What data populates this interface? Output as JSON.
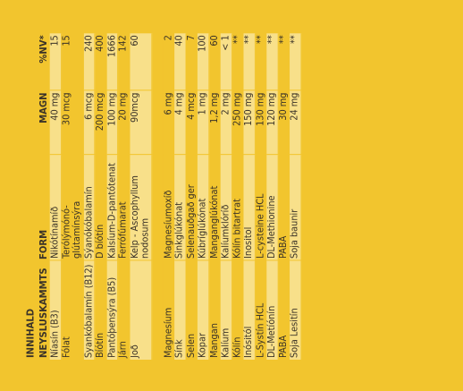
{
  "header": {
    "title_line1": "INNIHALD",
    "col1": "NEYSLUSKAMMTS",
    "col2": "FORM",
    "col3": "MAGN",
    "col4": "%NV*"
  },
  "rows": [
    {
      "name": "Níasín (B3)",
      "form": "Nikótínamíð",
      "amount": "40 mg",
      "nv": "15",
      "hl": true
    },
    {
      "name": "Fólat",
      "form": "Terólýmónó-glútamínsýra",
      "amount": "30 mcg",
      "nv": "15",
      "hl": false
    },
    {
      "name": "Syankóbalamín (B12)",
      "form": "Sýanókóbalamín",
      "amount": "6 mcg",
      "nv": "240",
      "hl": true
    },
    {
      "name": "Bíótín",
      "form": "D bíótín",
      "amount": "200 mcg",
      "nv": "400",
      "hl": false
    },
    {
      "name": "Pantóþensýra (B5)",
      "form": "Kalsíum-D-pantótenat",
      "amount": "100 mg",
      "nv": "1666",
      "hl": true
    },
    {
      "name": "Járn",
      "form": "Ferrófúmarat",
      "amount": "20 mg",
      "nv": "142",
      "hl": false
    },
    {
      "name": "Joð",
      "form": "Kelp - Ascophyllum nodosum",
      "amount": "90mcg",
      "nv": "60",
      "hl": true
    },
    {
      "name": "Magnesíum",
      "form": "Magnesíumoxíð",
      "amount": "6 mg",
      "nv": "2",
      "hl": false
    },
    {
      "name": "Sínk",
      "form": "Sinkglúkónat",
      "amount": "4 mg",
      "nv": "40",
      "hl": true
    },
    {
      "name": "Selen",
      "form": "Selenauðgað ger",
      "amount": "4 mcg",
      "nv": "7",
      "hl": false
    },
    {
      "name": "Kopar",
      "form": "Kúbríglúkónat",
      "amount": "1 mg",
      "nv": "100",
      "hl": true
    },
    {
      "name": "Mangan",
      "form": "Manganglúkónat",
      "amount": "1,2 mg",
      "nv": "60",
      "hl": false
    },
    {
      "name": "Kalíum",
      "form": "Kalíumklóríð",
      "amount": "2 mg",
      "nv": "< 1",
      "hl": true
    },
    {
      "name": "Kólín",
      "form": "Kólín bitartrat",
      "amount": "250 mg",
      "nv": "**",
      "hl": false
    },
    {
      "name": "Inósitól",
      "form": "Inositol",
      "amount": "150 mg",
      "nv": "**",
      "hl": true
    },
    {
      "name": "L-Systín HCL",
      "form": "L-cysteine HCL",
      "amount": "130 mg",
      "nv": "**",
      "hl": false
    },
    {
      "name": "DL-Metíónín",
      "form": "DL-Methionine",
      "amount": "120 mg",
      "nv": "**",
      "hl": true
    },
    {
      "name": "PABA",
      "form": "PABA",
      "amount": "30 mg",
      "nv": "**",
      "hl": false
    },
    {
      "name": "Soja Lesitín",
      "form": "Soja baunir",
      "amount": "24 mg",
      "nv": "**",
      "hl": true
    }
  ],
  "colors": {
    "background": "#f2c52e",
    "row_highlight": "#f8e08a",
    "text": "#3b3328"
  }
}
